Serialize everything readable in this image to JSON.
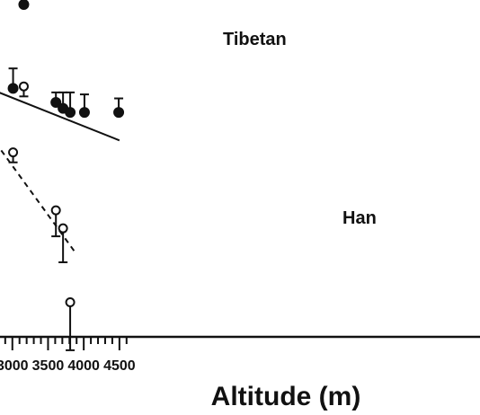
{
  "chart_data": {
    "type": "scatter",
    "xlabel": "Altitude (m)",
    "ylabel": "",
    "x_ticks": [
      "3000",
      "3500",
      "4000",
      "4500"
    ],
    "xlim": [
      2600,
      4500
    ],
    "ylim": [
      0,
      100
    ],
    "grid": false,
    "colors": {
      "ink": "#111111",
      "background": "#ffffff"
    },
    "series": [
      {
        "name": "Tibetan",
        "marker": "filled-circle",
        "points": [
          {
            "x": 2610,
            "y": 77.5,
            "err": 3.5
          },
          {
            "x": 3010,
            "y": 83.5,
            "err": 5.0
          },
          {
            "x": 3160,
            "y": 104.5,
            "err": 4.0
          },
          {
            "x": 3610,
            "y": 80.0,
            "err": 2.5
          },
          {
            "x": 3710,
            "y": 78.5,
            "err": 4.0
          },
          {
            "x": 3810,
            "y": 77.5,
            "err": 5.0
          },
          {
            "x": 4010,
            "y": 77.5,
            "err": 4.5
          },
          {
            "x": 4490,
            "y": 77.5,
            "err": 3.5
          }
        ],
        "fit": {
          "style": "solid",
          "x": [
            2600,
            4500
          ],
          "y": [
            84.0,
            70.5
          ]
        }
      },
      {
        "name": "Han",
        "marker": "open-circle",
        "points": [
          {
            "x": 2610,
            "y": 72.0,
            "err": 2.0,
            "err_dir": "down"
          },
          {
            "x": 3010,
            "y": 67.5,
            "err": 2.5,
            "err_dir": "down"
          },
          {
            "x": 3160,
            "y": 84.0,
            "err": 2.5,
            "err_dir": "down"
          },
          {
            "x": 3610,
            "y": 53.0,
            "err": 6.5,
            "err_dir": "down"
          },
          {
            "x": 3710,
            "y": 48.5,
            "err": 8.5,
            "err_dir": "down"
          },
          {
            "x": 3810,
            "y": 30.0,
            "err": 12.0,
            "err_dir": "down"
          }
        ],
        "fit": {
          "style": "dashed",
          "x": [
            2600,
            3900
          ],
          "y": [
            74.0,
            42.0
          ]
        }
      }
    ]
  }
}
